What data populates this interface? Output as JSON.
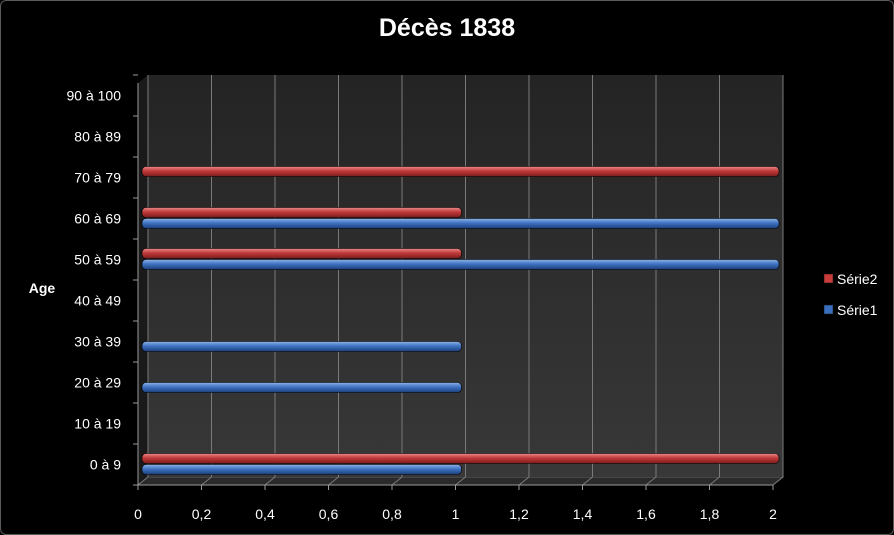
{
  "chart_data": {
    "type": "bar",
    "orientation": "horizontal",
    "title": "Décès 1838",
    "ylabel": "Age",
    "xlabel": "",
    "categories": [
      "0 à 9",
      "10 à 19",
      "20 à 29",
      "30 à 39",
      "40 à 49",
      "50 à 59",
      "60 à 69",
      "70 à 79",
      "80 à 89",
      "90 à 100"
    ],
    "x_ticks": [
      "0",
      "0,2",
      "0,4",
      "0,6",
      "0,8",
      "1",
      "1,2",
      "1,4",
      "1,6",
      "1,8",
      "2"
    ],
    "xlim": [
      0,
      2
    ],
    "grid": true,
    "legend_position": "right",
    "series": [
      {
        "name": "Série1",
        "color": "#3a6fbf",
        "values": [
          1,
          0,
          1,
          1,
          0,
          2,
          2,
          0,
          0,
          0
        ]
      },
      {
        "name": "Série2",
        "color": "#c83c3c",
        "values": [
          2,
          0,
          0,
          0,
          0,
          1,
          1,
          2,
          0,
          0
        ]
      }
    ],
    "legend": [
      "Série2",
      "Série1"
    ]
  }
}
